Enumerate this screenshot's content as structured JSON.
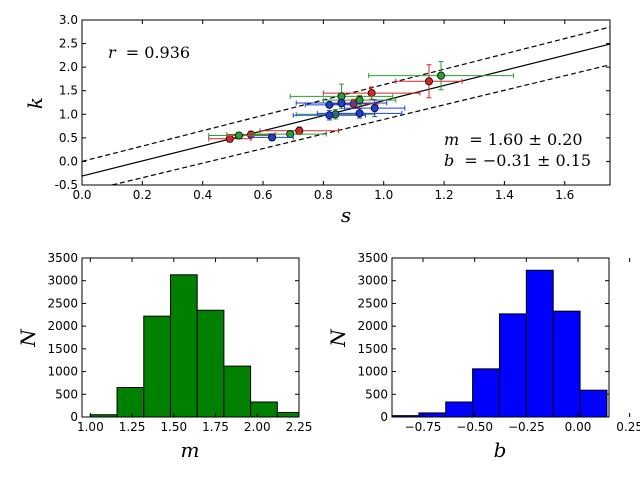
{
  "chart_data": [
    {
      "type": "scatter",
      "panel": "top",
      "xlabel": "s",
      "ylabel": "k",
      "xlim": [
        0.0,
        1.75
      ],
      "ylim": [
        -0.5,
        3.0
      ],
      "xticks": [
        "0.0",
        "0.2",
        "0.4",
        "0.6",
        "0.8",
        "1.0",
        "1.2",
        "1.4",
        "1.6"
      ],
      "yticks": [
        "-0.5",
        "0.0",
        "0.5",
        "1.0",
        "1.5",
        "2.0",
        "2.5",
        "3.0"
      ],
      "annotation_r": {
        "label": "r",
        "value": "= 0.936"
      },
      "annotation_m": {
        "label": "m",
        "value": "= 1.60 ± 0.20"
      },
      "annotation_b": {
        "label": "b",
        "value": "= −0.31 ± 0.15"
      },
      "fit_line": {
        "slope": 1.6,
        "intercept": -0.31
      },
      "confidence_band": {
        "upper": [
          [
            0.0,
            0.0
          ],
          [
            1.75,
            2.85
          ]
        ],
        "lower": [
          [
            0.1,
            -0.5
          ],
          [
            1.75,
            2.05
          ]
        ]
      },
      "series": [
        {
          "name": "red",
          "color": "#d62728",
          "points": [
            {
              "x": 0.49,
              "y": 0.48,
              "xerr": 0.07,
              "yerr": 0.07
            },
            {
              "x": 0.56,
              "y": 0.57,
              "xerr": 0.08,
              "yerr": 0.07
            },
            {
              "x": 0.72,
              "y": 0.65,
              "xerr": 0.13,
              "yerr": 0.08
            },
            {
              "x": 0.9,
              "y": 1.22,
              "xerr": 0.08,
              "yerr": 0.1
            },
            {
              "x": 0.96,
              "y": 1.45,
              "xerr": 0.16,
              "yerr": 0.13
            },
            {
              "x": 1.15,
              "y": 1.7,
              "xerr": 0.11,
              "yerr": 0.35
            }
          ]
        },
        {
          "name": "green",
          "color": "#2ca02c",
          "points": [
            {
              "x": 0.52,
              "y": 0.55,
              "xerr": 0.1,
              "yerr": 0.06
            },
            {
              "x": 0.69,
              "y": 0.58,
              "xerr": 0.12,
              "yerr": 0.07
            },
            {
              "x": 0.84,
              "y": 1.0,
              "xerr": 0.13,
              "yerr": 0.1
            },
            {
              "x": 0.86,
              "y": 1.38,
              "xerr": 0.17,
              "yerr": 0.26
            },
            {
              "x": 0.92,
              "y": 1.3,
              "xerr": 0.12,
              "yerr": 0.1
            },
            {
              "x": 1.19,
              "y": 1.82,
              "xerr": 0.24,
              "yerr": 0.3
            }
          ]
        },
        {
          "name": "blue",
          "color": "#1f3fd6",
          "points": [
            {
              "x": 0.63,
              "y": 0.51,
              "xerr": 0.07,
              "yerr": 0.07
            },
            {
              "x": 0.82,
              "y": 0.98,
              "xerr": 0.12,
              "yerr": 0.1
            },
            {
              "x": 0.82,
              "y": 1.2,
              "xerr": 0.08,
              "yerr": 0.06
            },
            {
              "x": 0.86,
              "y": 1.24,
              "xerr": 0.15,
              "yerr": 0.08
            },
            {
              "x": 0.92,
              "y": 1.02,
              "xerr": 0.14,
              "yerr": 0.1
            },
            {
              "x": 0.97,
              "y": 1.13,
              "xerr": 0.1,
              "yerr": 0.18
            }
          ]
        }
      ]
    },
    {
      "type": "bar",
      "panel": "bottom-left",
      "xlabel": "m",
      "ylabel": "N",
      "color": "#008000",
      "xlim": [
        0.95,
        2.25
      ],
      "ylim": [
        0,
        3500
      ],
      "xticks": [
        "1.00",
        "1.25",
        "1.50",
        "1.75",
        "2.00",
        "2.25"
      ],
      "yticks": [
        "0",
        "500",
        "1000",
        "1500",
        "2000",
        "2500",
        "3000",
        "3500"
      ],
      "bin_edges": [
        1.0,
        1.16,
        1.32,
        1.48,
        1.64,
        1.8,
        1.96,
        2.12,
        2.28
      ],
      "values": [
        50,
        650,
        2220,
        3130,
        2350,
        1120,
        330,
        100
      ]
    },
    {
      "type": "bar",
      "panel": "bottom-right",
      "xlabel": "b",
      "ylabel": "N",
      "color": "#0000ff",
      "xlim": [
        -0.9,
        0.15
      ],
      "ylim": [
        0,
        3500
      ],
      "xticks": [
        "−0.75",
        "−0.50",
        "−0.25",
        "0.00",
        "0.25"
      ],
      "yticks": [
        "0",
        "500",
        "1000",
        "1500",
        "2000",
        "2500",
        "3000",
        "3500"
      ],
      "bin_edges": [
        -0.9,
        -0.77,
        -0.64,
        -0.51,
        -0.38,
        -0.25,
        -0.12,
        0.01,
        0.14
      ],
      "values": [
        30,
        90,
        330,
        1060,
        2270,
        3230,
        2330,
        590
      ]
    }
  ]
}
